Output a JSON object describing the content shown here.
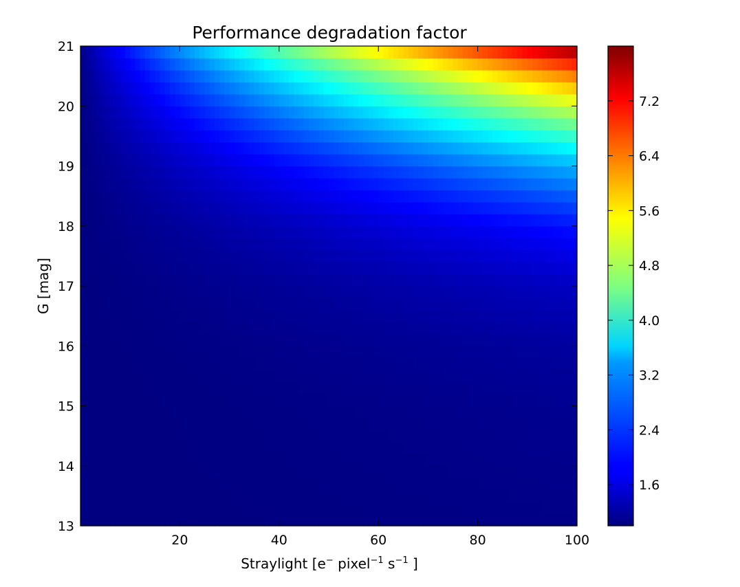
{
  "chart_data": {
    "type": "heatmap",
    "title": "Performance degradation factor",
    "xlabel": {
      "base": "Straylight [e",
      "sup1": "−",
      "mid1": " pixel",
      "sup2": "−1",
      "mid2": " s",
      "sup3": "−1",
      "end": " ]"
    },
    "ylabel": "G [mag]",
    "xlim": [
      0,
      100
    ],
    "ylim": [
      13,
      21
    ],
    "x_ticks": [
      "20",
      "40",
      "60",
      "80",
      "100"
    ],
    "y_ticks": [
      "13",
      "14",
      "15",
      "16",
      "17",
      "18",
      "19",
      "20",
      "21"
    ],
    "x_tick_values": [
      20,
      40,
      60,
      80,
      100
    ],
    "y_tick_values": [
      13,
      14,
      15,
      16,
      17,
      18,
      19,
      20,
      21
    ],
    "x_bins": 100,
    "y_bin_width": 0.2,
    "colormap": "jet",
    "colorbar": {
      "range": [
        1.0,
        8.0
      ],
      "ticks": [
        "1.6",
        "2.4",
        "3.2",
        "4.0",
        "4.8",
        "5.6",
        "6.4",
        "7.2"
      ],
      "tick_values": [
        1.6,
        2.4,
        3.2,
        4.0,
        4.8,
        5.6,
        6.4,
        7.2
      ]
    },
    "value_model": {
      "description_of_values": "degradation factor ≈ 1 + a(G)·x^p(G); rows every 0.2 mag from 13 to 21, columns every 1 straylight unit",
      "row_max_at_x100": [
        {
          "G": 13.0,
          "value": 1.05
        },
        {
          "G": 15.0,
          "value": 1.12
        },
        {
          "G": 16.0,
          "value": 1.22
        },
        {
          "G": 17.0,
          "value": 1.45
        },
        {
          "G": 17.6,
          "value": 1.75
        },
        {
          "G": 18.0,
          "value": 2.0
        },
        {
          "G": 18.5,
          "value": 2.5
        },
        {
          "G": 19.0,
          "value": 3.1
        },
        {
          "G": 19.4,
          "value": 3.8
        },
        {
          "G": 19.8,
          "value": 4.6
        },
        {
          "G": 20.2,
          "value": 5.5
        },
        {
          "G": 20.6,
          "value": 6.5
        },
        {
          "G": 21.0,
          "value": 8.0
        }
      ]
    }
  }
}
